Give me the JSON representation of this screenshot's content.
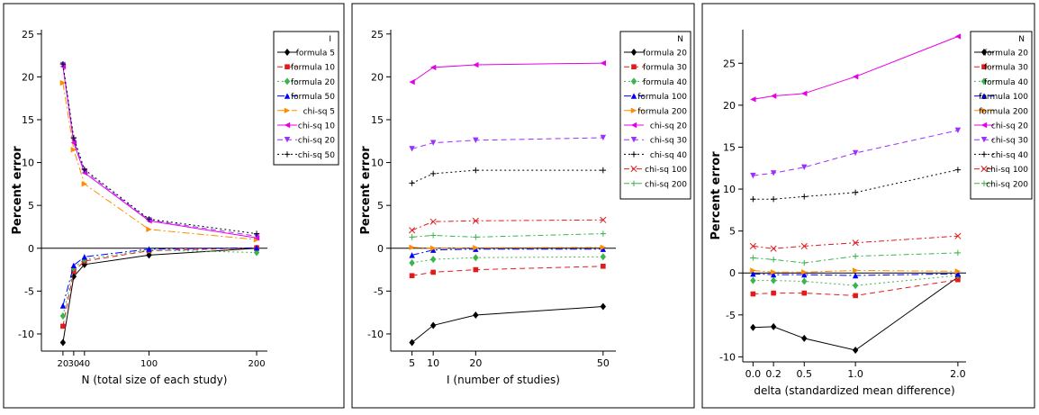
{
  "chart_data": [
    {
      "type": "line",
      "xlabel": "N (total size of each study)",
      "ylabel": "Percent error",
      "x": [
        20,
        30,
        40,
        100,
        200
      ],
      "xticks": [
        20,
        30,
        40,
        100,
        200
      ],
      "xlim": [
        0,
        210
      ],
      "ylim": [
        -12,
        25.5
      ],
      "yticks": [
        -10,
        -5,
        0,
        5,
        10,
        15,
        20,
        25
      ],
      "legend_title": "I",
      "series": [
        {
          "name": "formula  5",
          "values": [
            -11,
            -3.3,
            -1.9,
            -0.8,
            0.0
          ],
          "color": "#000000",
          "marker": "diamond",
          "dash": ""
        },
        {
          "name": "formula 10",
          "values": [
            -9.1,
            -2.7,
            -1.5,
            -0.3,
            0.05
          ],
          "color": "#e31a1c",
          "marker": "square",
          "dash": "6,4"
        },
        {
          "name": "formula 20",
          "values": [
            -7.9,
            -2.3,
            -1.3,
            -0.2,
            -0.5
          ],
          "color": "#3cb44b",
          "marker": "diamond",
          "dash": "2,3"
        },
        {
          "name": "formula 50",
          "values": [
            -6.7,
            -2.0,
            -1.0,
            -0.1,
            0.05
          ],
          "color": "#0000ff",
          "marker": "triangle-up",
          "dash": "8,3,2,3"
        },
        {
          "name": "chi-sq  5",
          "values": [
            19.3,
            11.5,
            7.5,
            2.2,
            1.0
          ],
          "color": "#ff8c00",
          "marker": "triangle-right",
          "dash": "8,3,2,3"
        },
        {
          "name": "chi-sq 10",
          "values": [
            21.2,
            12.3,
            8.8,
            3.2,
            1.2
          ],
          "color": "#e600e6",
          "marker": "triangle-left",
          "dash": ""
        },
        {
          "name": "chi-sq 20",
          "values": [
            21.4,
            12.6,
            9.0,
            3.3,
            1.4
          ],
          "color": "#9b30ff",
          "marker": "triangle-down",
          "dash": "6,4"
        },
        {
          "name": "chi-sq 50",
          "values": [
            21.5,
            12.9,
            9.2,
            3.4,
            1.7
          ],
          "color": "#000000",
          "marker": "plus",
          "dash": "2,3"
        }
      ]
    },
    {
      "type": "line",
      "xlabel": "I (number of studies)",
      "ylabel": "Percent error",
      "x": [
        5,
        10,
        20,
        50
      ],
      "xticks": [
        5,
        10,
        20,
        50
      ],
      "xlim": [
        0,
        53
      ],
      "ylim": [
        -12,
        25.5
      ],
      "yticks": [
        -10,
        -5,
        0,
        5,
        10,
        15,
        20,
        25
      ],
      "legend_title": "N",
      "series": [
        {
          "name": "formula  20",
          "values": [
            -11,
            -9.0,
            -7.8,
            -6.8
          ],
          "color": "#000000",
          "marker": "diamond",
          "dash": ""
        },
        {
          "name": "formula  30",
          "values": [
            -3.2,
            -2.8,
            -2.5,
            -2.1
          ],
          "color": "#e31a1c",
          "marker": "square",
          "dash": "6,4"
        },
        {
          "name": "formula  40",
          "values": [
            -1.7,
            -1.3,
            -1.1,
            -1.0
          ],
          "color": "#3cb44b",
          "marker": "diamond",
          "dash": "2,3"
        },
        {
          "name": "formula 100",
          "values": [
            -0.8,
            -0.2,
            -0.1,
            -0.1
          ],
          "color": "#0000ff",
          "marker": "triangle-up",
          "dash": "8,3,2,3"
        },
        {
          "name": "formula 200",
          "values": [
            0.1,
            0.0,
            0.05,
            0.1
          ],
          "color": "#ff8c00",
          "marker": "triangle-right",
          "dash": "8,3,2,3"
        },
        {
          "name": "chi-sq  20",
          "values": [
            19.4,
            21.1,
            21.4,
            21.6
          ],
          "color": "#e600e6",
          "marker": "triangle-left",
          "dash": ""
        },
        {
          "name": "chi-sq  30",
          "values": [
            11.6,
            12.3,
            12.6,
            12.9
          ],
          "color": "#9b30ff",
          "marker": "triangle-down",
          "dash": "6,4"
        },
        {
          "name": "chi-sq  40",
          "values": [
            7.6,
            8.7,
            9.1,
            9.1
          ],
          "color": "#000000",
          "marker": "plus",
          "dash": "2,3"
        },
        {
          "name": "chi-sq 100",
          "values": [
            2.1,
            3.1,
            3.2,
            3.3
          ],
          "color": "#e31a1c",
          "marker": "x",
          "dash": "6,3,2,3"
        },
        {
          "name": "chi-sq 200",
          "values": [
            1.3,
            1.5,
            1.3,
            1.7
          ],
          "color": "#3cb44b",
          "marker": "plus",
          "dash": "6,3,2,3"
        }
      ]
    },
    {
      "type": "line",
      "xlabel": "delta (standardized mean difference)",
      "ylabel": "Percent error",
      "x": [
        0.0,
        0.2,
        0.5,
        1.0,
        2.0
      ],
      "xticks": [
        0.0,
        0.2,
        0.5,
        1.0,
        2.0
      ],
      "xtick_labels": [
        "0.0",
        "0.2",
        "0.5",
        "1.0",
        "2.0"
      ],
      "xlim": [
        -0.1,
        2.08
      ],
      "ylim": [
        -10.6,
        29
      ],
      "yticks": [
        -10,
        -5,
        0,
        5,
        10,
        15,
        20,
        25
      ],
      "legend_title": "N",
      "series": [
        {
          "name": "formula  20",
          "values": [
            -6.5,
            -6.4,
            -7.8,
            -9.2,
            -0.5
          ],
          "color": "#000000",
          "marker": "diamond",
          "dash": ""
        },
        {
          "name": "formula  30",
          "values": [
            -2.5,
            -2.4,
            -2.4,
            -2.7,
            -0.8
          ],
          "color": "#e31a1c",
          "marker": "square",
          "dash": "6,4"
        },
        {
          "name": "formula  40",
          "values": [
            -0.9,
            -0.9,
            -1.0,
            -1.5,
            -0.3
          ],
          "color": "#3cb44b",
          "marker": "diamond",
          "dash": "2,3"
        },
        {
          "name": "formula 100",
          "values": [
            -0.1,
            -0.2,
            -0.2,
            -0.3,
            -0.1
          ],
          "color": "#0000ff",
          "marker": "triangle-up",
          "dash": "8,3,2,3"
        },
        {
          "name": "formula 200",
          "values": [
            0.3,
            0.1,
            0.1,
            0.3,
            0.2
          ],
          "color": "#ff8c00",
          "marker": "triangle-right",
          "dash": "8,3,2,3"
        },
        {
          "name": "chi-sq  20",
          "values": [
            20.7,
            21.1,
            21.4,
            23.4,
            28.2
          ],
          "color": "#e600e6",
          "marker": "triangle-left",
          "dash": ""
        },
        {
          "name": "chi-sq  30",
          "values": [
            11.6,
            11.9,
            12.6,
            14.3,
            17.0
          ],
          "color": "#9b30ff",
          "marker": "triangle-down",
          "dash": "6,4"
        },
        {
          "name": "chi-sq  40",
          "values": [
            8.8,
            8.8,
            9.1,
            9.6,
            12.3
          ],
          "color": "#000000",
          "marker": "plus",
          "dash": "2,3"
        },
        {
          "name": "chi-sq 100",
          "values": [
            3.2,
            2.9,
            3.2,
            3.6,
            4.4
          ],
          "color": "#e31a1c",
          "marker": "x",
          "dash": "6,3,2,3"
        },
        {
          "name": "chi-sq 200",
          "values": [
            1.8,
            1.6,
            1.2,
            2.0,
            2.4
          ],
          "color": "#3cb44b",
          "marker": "plus",
          "dash": "6,3,2,3"
        }
      ]
    }
  ]
}
